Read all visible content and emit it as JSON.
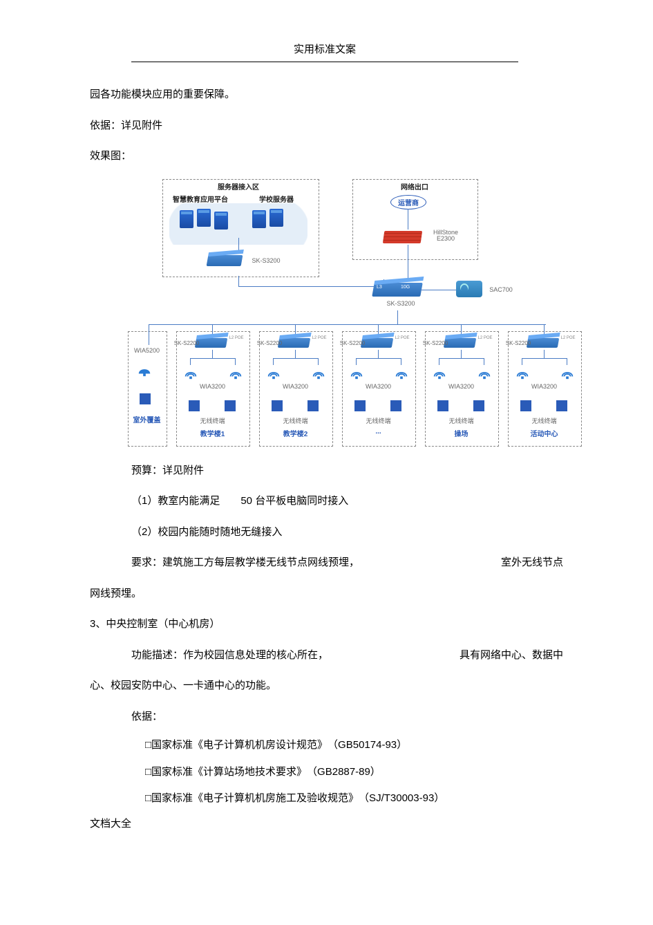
{
  "header": "实用标准文案",
  "body": {
    "p1": "园各功能模块应用的重要保障。",
    "p2": "依据：详见附件",
    "p3": "效果图：",
    "budget": "预算：详见附件",
    "req1": "（1）教室内能满足　　50 台平板电脑同时接入",
    "req2": "（2）校园内能随时随地无缝接入",
    "req3a": "要求：建筑施工方每层教学楼无线节点网线预埋，",
    "req3b": "室外无线节点",
    "req4": "网线预埋。",
    "s3": "3、中央控制室（中心机房）",
    "s3_func_a": "功能描述：作为校园信息处理的核心所在，",
    "s3_func_b": "具有网络中心、数据中",
    "s3_func_c": "心、校园安防中心、一卡通中心的功能。",
    "basis_label": "依据：",
    "std1": "□国家标准《电子计算机机房设计规范》　（GB50174-93）",
    "std2": "□国家标准《计算站场地技术要求》　（GB2887-89）",
    "std3": "□国家标准《电子计算机机房施工及验收规范》　（SJ/T30003-93）"
  },
  "footer": "文档大全",
  "diagram": {
    "colors": {
      "dashed_border": "#888888",
      "label_blue": "#2a5bb8",
      "label_black": "#222222",
      "label_gray": "#666666",
      "line": "#4a7bc4",
      "cloud_fill": "#e4eef8",
      "server_fill": "#2a6bd4",
      "switch_fill": "#4a8bd4",
      "firewall_fill": "#d43a2a",
      "terminal_fill": "#2a5bb8",
      "background": "#ffffff"
    },
    "server_zone": {
      "title": "服务器接入区",
      "platform": "智慧教育应用平台",
      "school_server": "学校服务器",
      "switch": "SK-S3200"
    },
    "exit_zone": {
      "title": "网络出口",
      "isp": "运营商",
      "firewall_model": "HillStone E2300"
    },
    "core": {
      "switch": "SK-S3200",
      "switch_badge_l": "L3",
      "switch_badge_r": "10G",
      "controller": "SAC700"
    },
    "outdoor": {
      "ap": "WIA5200",
      "label": "室外覆盖"
    },
    "buildings": [
      {
        "switch": "SK-S2200",
        "ap": "WIA3200",
        "terminal": "无线终端",
        "name": "教学楼1"
      },
      {
        "switch": "SK-S2200",
        "ap": "WIA3200",
        "terminal": "无线终端",
        "name": "教学楼2"
      },
      {
        "switch": "SK-S2200",
        "ap": "WIA3200",
        "terminal": "无线终端",
        "name": "..."
      },
      {
        "switch": "SK-S2200",
        "ap": "WIA3200",
        "terminal": "无线终端",
        "name": "操场"
      },
      {
        "switch": "SK-S2200",
        "ap": "WIA3200",
        "terminal": "无线终端",
        "name": "活动中心"
      }
    ],
    "switch_badge_small": "L2",
    "switch_badge_small_r": "POE"
  }
}
